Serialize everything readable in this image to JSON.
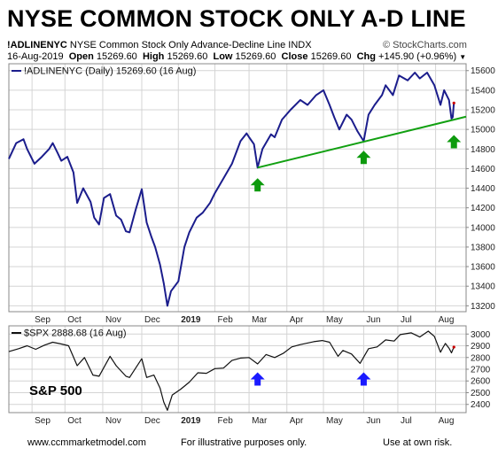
{
  "headline": "NYSE COMMON STOCK ONLY A-D LINE",
  "header": {
    "symbol": "!ADLINENYC",
    "description": "NYSE Common Stock Only Advance-Decline Line  INDX",
    "copyright": "© StockCharts.com",
    "date": "16-Aug-2019",
    "open_label": "Open",
    "open": "15269.60",
    "high_label": "High",
    "high": "15269.60",
    "low_label": "Low",
    "low": "15269.60",
    "close_label": "Close",
    "close": "15269.60",
    "chg_label": "Chg",
    "chg": "+145.90 (+0.96%)",
    "down_arrow": "▼"
  },
  "footer": {
    "website": "www.ccmmarketmodel.com",
    "note": "For illustrative purposes only.",
    "risk": "Use at own risk."
  },
  "colors": {
    "ad_line": "#1b1d8c",
    "spx_line": "#111111",
    "trendline": "#11a011",
    "up_arrow_top": "#0d9a0d",
    "up_arrow_bottom": "#1a1aff",
    "grid": "#d4d4d4",
    "close_tag": "#cc0000"
  },
  "chart_data": [
    {
      "type": "line",
      "name": "ad-line",
      "legend": "!ADLINENYC (Daily) 15269.60 (16 Aug)",
      "x_ticks": [
        "Sep",
        "Oct",
        "Nov",
        "Dec",
        "2019",
        "Feb",
        "Mar",
        "Apr",
        "May",
        "Jun",
        "Jul",
        "Aug"
      ],
      "y_ticks": [
        13200,
        13400,
        13600,
        13800,
        14000,
        14200,
        14400,
        14600,
        14800,
        15000,
        15200,
        15400,
        15600
      ],
      "ylim": [
        13140,
        15670
      ],
      "x_range": [
        "2018-08-16",
        "2019-08-26"
      ],
      "series": [
        {
          "values": [
            [
              "2018-08-16",
              14700
            ],
            [
              "2018-08-22",
              14860
            ],
            [
              "2018-08-28",
              14900
            ],
            [
              "2018-08-31",
              14800
            ],
            [
              "2018-09-06",
              14650
            ],
            [
              "2018-09-12",
              14720
            ],
            [
              "2018-09-18",
              14800
            ],
            [
              "2018-09-21",
              14860
            ],
            [
              "2018-09-25",
              14760
            ],
            [
              "2018-09-28",
              14680
            ],
            [
              "2018-10-03",
              14720
            ],
            [
              "2018-10-08",
              14560
            ],
            [
              "2018-10-11",
              14250
            ],
            [
              "2018-10-16",
              14400
            ],
            [
              "2018-10-22",
              14260
            ],
            [
              "2018-10-25",
              14100
            ],
            [
              "2018-10-29",
              14030
            ],
            [
              "2018-11-02",
              14300
            ],
            [
              "2018-11-07",
              14340
            ],
            [
              "2018-11-12",
              14120
            ],
            [
              "2018-11-16",
              14080
            ],
            [
              "2018-11-20",
              13960
            ],
            [
              "2018-11-23",
              13950
            ],
            [
              "2018-11-28",
              14180
            ],
            [
              "2018-12-03",
              14390
            ],
            [
              "2018-12-07",
              14050
            ],
            [
              "2018-12-11",
              13900
            ],
            [
              "2018-12-14",
              13800
            ],
            [
              "2018-12-18",
              13620
            ],
            [
              "2018-12-21",
              13430
            ],
            [
              "2018-12-24",
              13200
            ],
            [
              "2018-12-27",
              13350
            ],
            [
              "2019-01-02",
              13450
            ],
            [
              "2019-01-07",
              13800
            ],
            [
              "2019-01-11",
              13950
            ],
            [
              "2019-01-17",
              14100
            ],
            [
              "2019-01-22",
              14150
            ],
            [
              "2019-01-28",
              14250
            ],
            [
              "2019-02-01",
              14350
            ],
            [
              "2019-02-08",
              14500
            ],
            [
              "2019-02-15",
              14650
            ],
            [
              "2019-02-22",
              14880
            ],
            [
              "2019-02-27",
              14960
            ],
            [
              "2019-03-01",
              14920
            ],
            [
              "2019-03-05",
              14850
            ],
            [
              "2019-03-08",
              14610
            ],
            [
              "2019-03-12",
              14800
            ],
            [
              "2019-03-19",
              14950
            ],
            [
              "2019-03-22",
              14920
            ],
            [
              "2019-03-28",
              15100
            ],
            [
              "2019-04-04",
              15200
            ],
            [
              "2019-04-12",
              15300
            ],
            [
              "2019-04-18",
              15250
            ],
            [
              "2019-04-25",
              15350
            ],
            [
              "2019-05-01",
              15400
            ],
            [
              "2019-05-06",
              15250
            ],
            [
              "2019-05-10",
              15120
            ],
            [
              "2019-05-14",
              15000
            ],
            [
              "2019-05-20",
              15150
            ],
            [
              "2019-05-24",
              15100
            ],
            [
              "2019-05-29",
              14980
            ],
            [
              "2019-06-03",
              14880
            ],
            [
              "2019-06-07",
              15150
            ],
            [
              "2019-06-12",
              15250
            ],
            [
              "2019-06-18",
              15350
            ],
            [
              "2019-06-21",
              15450
            ],
            [
              "2019-06-27",
              15350
            ],
            [
              "2019-07-02",
              15550
            ],
            [
              "2019-07-09",
              15500
            ],
            [
              "2019-07-15",
              15580
            ],
            [
              "2019-07-19",
              15520
            ],
            [
              "2019-07-25",
              15580
            ],
            [
              "2019-07-31",
              15450
            ],
            [
              "2019-08-05",
              15250
            ],
            [
              "2019-08-08",
              15400
            ],
            [
              "2019-08-12",
              15300
            ],
            [
              "2019-08-14",
              15110
            ],
            [
              "2019-08-15",
              15124
            ],
            [
              "2019-08-16",
              15269.6
            ]
          ]
        }
      ],
      "annotations": {
        "trendline": [
          [
            "2019-03-08",
            14610
          ],
          [
            "2019-08-26",
            15130
          ]
        ],
        "up_arrows": [
          [
            "2019-03-08",
            14430
          ],
          [
            "2019-06-03",
            14710
          ],
          [
            "2019-08-16",
            14870
          ]
        ]
      },
      "grid": true,
      "legend_position": "top-left"
    },
    {
      "type": "line",
      "name": "spx",
      "legend": "$SPX 2888.68 (16 Aug)",
      "label": "S&P 500",
      "x_ticks": [
        "Sep",
        "Oct",
        "Nov",
        "Dec",
        "2019",
        "Feb",
        "Mar",
        "Apr",
        "May",
        "Jun",
        "Jul",
        "Aug"
      ],
      "y_ticks": [
        2400,
        2500,
        2600,
        2700,
        2800,
        2900,
        3000
      ],
      "ylim": [
        2330,
        3070
      ],
      "x_range": [
        "2018-08-16",
        "2019-08-26"
      ],
      "series": [
        {
          "values": [
            [
              "2018-08-16",
              2850
            ],
            [
              "2018-08-24",
              2875
            ],
            [
              "2018-08-31",
              2900
            ],
            [
              "2018-09-07",
              2870
            ],
            [
              "2018-09-14",
              2905
            ],
            [
              "2018-09-21",
              2930
            ],
            [
              "2018-09-28",
              2915
            ],
            [
              "2018-10-04",
              2900
            ],
            [
              "2018-10-11",
              2730
            ],
            [
              "2018-10-17",
              2800
            ],
            [
              "2018-10-24",
              2650
            ],
            [
              "2018-10-29",
              2640
            ],
            [
              "2018-11-07",
              2810
            ],
            [
              "2018-11-12",
              2730
            ],
            [
              "2018-11-20",
              2640
            ],
            [
              "2018-11-23",
              2630
            ],
            [
              "2018-12-03",
              2790
            ],
            [
              "2018-12-07",
              2630
            ],
            [
              "2018-12-13",
              2650
            ],
            [
              "2018-12-18",
              2540
            ],
            [
              "2018-12-21",
              2420
            ],
            [
              "2018-12-24",
              2350
            ],
            [
              "2018-12-28",
              2480
            ],
            [
              "2019-01-04",
              2530
            ],
            [
              "2019-01-11",
              2590
            ],
            [
              "2019-01-18",
              2670
            ],
            [
              "2019-01-25",
              2665
            ],
            [
              "2019-02-01",
              2705
            ],
            [
              "2019-02-08",
              2710
            ],
            [
              "2019-02-15",
              2775
            ],
            [
              "2019-02-22",
              2795
            ],
            [
              "2019-03-01",
              2800
            ],
            [
              "2019-03-08",
              2745
            ],
            [
              "2019-03-15",
              2825
            ],
            [
              "2019-03-22",
              2800
            ],
            [
              "2019-03-29",
              2835
            ],
            [
              "2019-04-05",
              2890
            ],
            [
              "2019-04-12",
              2910
            ],
            [
              "2019-04-23",
              2935
            ],
            [
              "2019-04-30",
              2945
            ],
            [
              "2019-05-06",
              2930
            ],
            [
              "2019-05-13",
              2810
            ],
            [
              "2019-05-17",
              2860
            ],
            [
              "2019-05-24",
              2830
            ],
            [
              "2019-05-31",
              2750
            ],
            [
              "2019-06-07",
              2875
            ],
            [
              "2019-06-14",
              2890
            ],
            [
              "2019-06-21",
              2950
            ],
            [
              "2019-06-28",
              2940
            ],
            [
              "2019-07-03",
              2995
            ],
            [
              "2019-07-12",
              3010
            ],
            [
              "2019-07-19",
              2975
            ],
            [
              "2019-07-26",
              3025
            ],
            [
              "2019-07-31",
              2980
            ],
            [
              "2019-08-05",
              2845
            ],
            [
              "2019-08-07",
              2885
            ],
            [
              "2019-08-09",
              2920
            ],
            [
              "2019-08-12",
              2880
            ],
            [
              "2019-08-14",
              2840
            ],
            [
              "2019-08-16",
              2888.68
            ]
          ]
        }
      ],
      "annotations": {
        "up_arrows": [
          [
            "2019-03-08",
            2613
          ],
          [
            "2019-06-03",
            2613
          ]
        ]
      },
      "grid": true,
      "legend_position": "top-left"
    }
  ]
}
